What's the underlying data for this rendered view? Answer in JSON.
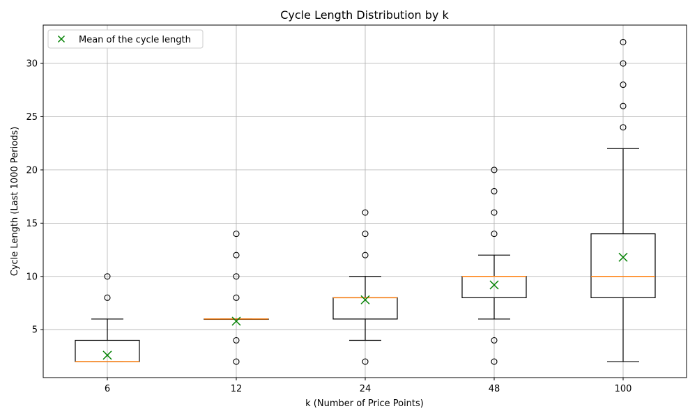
{
  "chart_data": {
    "type": "box",
    "title": "Cycle Length Distribution by k",
    "xlabel": "k (Number of Price Points)",
    "ylabel": "Cycle Length (Last 1000 Periods)",
    "ylim": [
      0.5,
      33.6
    ],
    "yticks": [
      5,
      10,
      15,
      20,
      25,
      30
    ],
    "grid": true,
    "legend": {
      "position": "top-left",
      "entries": [
        "Mean of the cycle length"
      ]
    },
    "colors": {
      "box": "#000000",
      "median": "#ff7f0e",
      "mean": "#008000",
      "grid": "#b0b0b0"
    },
    "categories": [
      "6",
      "12",
      "24",
      "48",
      "100"
    ],
    "boxes": [
      {
        "k": "6",
        "whisker_low": 2,
        "q1": 2,
        "median": 2,
        "q3": 4,
        "whisker_high": 6,
        "mean": 2.6,
        "outliers": [
          8,
          10
        ]
      },
      {
        "k": "12",
        "whisker_low": 6,
        "q1": 6,
        "median": 6,
        "q3": 6,
        "whisker_high": 6,
        "mean": 5.8,
        "outliers": [
          2,
          4,
          8,
          10,
          12,
          14
        ]
      },
      {
        "k": "24",
        "whisker_low": 4,
        "q1": 6,
        "median": 8,
        "q3": 8,
        "whisker_high": 10,
        "mean": 7.8,
        "outliers": [
          2,
          12,
          14,
          16
        ]
      },
      {
        "k": "48",
        "whisker_low": 6,
        "q1": 8,
        "median": 10,
        "q3": 10,
        "whisker_high": 12,
        "mean": 9.2,
        "outliers": [
          2,
          4,
          14,
          16,
          18,
          20
        ]
      },
      {
        "k": "100",
        "whisker_low": 2,
        "q1": 8,
        "median": 10,
        "q3": 14,
        "whisker_high": 22,
        "mean": 11.8,
        "outliers": [
          24,
          26,
          28,
          30,
          32
        ]
      }
    ]
  }
}
